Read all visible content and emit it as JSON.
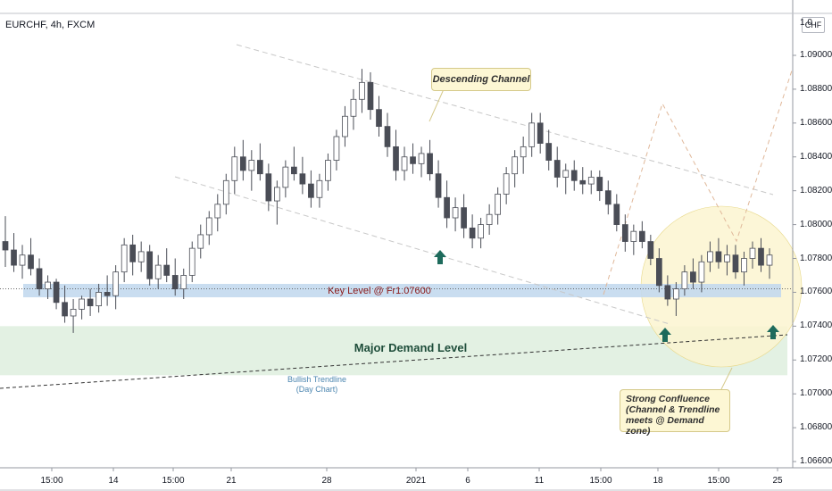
{
  "header": {
    "symbol": "EURCHF, 4h, FXCM",
    "currency": "CHF"
  },
  "annotations": {
    "descending_channel": "Descending Channel",
    "key_level": "Key Level @ Fr1.07600",
    "demand_level": "Major Demand Level",
    "trendline": "Bullish Trendline\n(Day Chart)",
    "confluence": "Strong Confluence\n(Channel & Trendline\nmeets @ Demand zone)"
  },
  "colors": {
    "bull": "#ffffff",
    "bear": "#4a4d56",
    "key_zone": "#c3d9ee",
    "demand_zone": "#e3f1e3",
    "confluence_circle": "#fbf4d0",
    "arrow": "#1e6b5c",
    "channel": "#c8c8c8",
    "projection": "#e0b89a"
  },
  "chart_data": {
    "type": "candlestick",
    "title": "EURCHF, 4h, FXCM",
    "y_axis": {
      "ticks": [
        "1.09000",
        "1.08800",
        "1.08600",
        "1.08400",
        "1.08200",
        "1.08000",
        "1.07800",
        "1.07600",
        "1.07400",
        "1.07200",
        "1.07000",
        "1.06800",
        "1.06600"
      ],
      "range": [
        1.065,
        1.092
      ]
    },
    "x_axis": {
      "ticks": [
        "15:00",
        "14",
        "15:00",
        "21",
        "28",
        "2021",
        "6",
        "11",
        "15:00",
        "18",
        "15:00",
        "25"
      ]
    },
    "key_level": 1.076,
    "demand_zone": [
      1.0711,
      1.074
    ],
    "bars": [
      [
        1.079,
        1.0805,
        1.0775,
        1.0785
      ],
      [
        1.0785,
        1.0795,
        1.0772,
        1.0776
      ],
      [
        1.0776,
        1.0788,
        1.0768,
        1.0782
      ],
      [
        1.0782,
        1.0792,
        1.077,
        1.0774
      ],
      [
        1.0774,
        1.078,
        1.0758,
        1.0762
      ],
      [
        1.0762,
        1.077,
        1.0756,
        1.0766
      ],
      [
        1.0766,
        1.0768,
        1.075,
        1.0754
      ],
      [
        1.0754,
        1.0764,
        1.0742,
        1.0746
      ],
      [
        1.0746,
        1.0756,
        1.0736,
        1.075
      ],
      [
        1.075,
        1.0758,
        1.0744,
        1.0756
      ],
      [
        1.0756,
        1.0762,
        1.0746,
        1.0752
      ],
      [
        1.0752,
        1.0765,
        1.0748,
        1.076
      ],
      [
        1.076,
        1.077,
        1.0752,
        1.0758
      ],
      [
        1.0758,
        1.0776,
        1.075,
        1.0772
      ],
      [
        1.0772,
        1.0792,
        1.0766,
        1.0788
      ],
      [
        1.0788,
        1.0794,
        1.077,
        1.0778
      ],
      [
        1.0778,
        1.079,
        1.0772,
        1.0784
      ],
      [
        1.0784,
        1.0788,
        1.0764,
        1.0768
      ],
      [
        1.0768,
        1.0782,
        1.0762,
        1.0776
      ],
      [
        1.0776,
        1.0786,
        1.0766,
        1.077
      ],
      [
        1.077,
        1.078,
        1.0758,
        1.0762
      ],
      [
        1.0762,
        1.0774,
        1.0756,
        1.077
      ],
      [
        1.077,
        1.079,
        1.0766,
        1.0786
      ],
      [
        1.0786,
        1.08,
        1.078,
        1.0794
      ],
      [
        1.0794,
        1.0808,
        1.0788,
        1.0804
      ],
      [
        1.0804,
        1.0818,
        1.0796,
        1.0812
      ],
      [
        1.0812,
        1.083,
        1.0806,
        1.0826
      ],
      [
        1.0826,
        1.0846,
        1.0818,
        1.084
      ],
      [
        1.084,
        1.085,
        1.0826,
        1.0832
      ],
      [
        1.0832,
        1.0844,
        1.082,
        1.0838
      ],
      [
        1.0838,
        1.0848,
        1.0826,
        1.083
      ],
      [
        1.083,
        1.0836,
        1.0808,
        1.0814
      ],
      [
        1.0814,
        1.0826,
        1.08,
        1.0822
      ],
      [
        1.0822,
        1.0838,
        1.0816,
        1.0834
      ],
      [
        1.0834,
        1.0846,
        1.0826,
        1.083
      ],
      [
        1.083,
        1.084,
        1.0818,
        1.0824
      ],
      [
        1.0824,
        1.0832,
        1.081,
        1.0816
      ],
      [
        1.0816,
        1.083,
        1.081,
        1.0826
      ],
      [
        1.0826,
        1.0842,
        1.082,
        1.0838
      ],
      [
        1.0838,
        1.0856,
        1.0832,
        1.0852
      ],
      [
        1.0852,
        1.087,
        1.0846,
        1.0864
      ],
      [
        1.0864,
        1.088,
        1.0856,
        1.0874
      ],
      [
        1.0874,
        1.0892,
        1.0866,
        1.0884
      ],
      [
        1.0884,
        1.089,
        1.0862,
        1.0868
      ],
      [
        1.0868,
        1.0876,
        1.0852,
        1.0858
      ],
      [
        1.0858,
        1.0866,
        1.084,
        1.0846
      ],
      [
        1.0846,
        1.0856,
        1.0826,
        1.0832
      ],
      [
        1.0832,
        1.0846,
        1.0826,
        1.084
      ],
      [
        1.084,
        1.0848,
        1.083,
        1.0836
      ],
      [
        1.0836,
        1.0846,
        1.0828,
        1.0842
      ],
      [
        1.0842,
        1.085,
        1.0826,
        1.083
      ],
      [
        1.083,
        1.0838,
        1.081,
        1.0816
      ],
      [
        1.0816,
        1.0826,
        1.0798,
        1.0804
      ],
      [
        1.0804,
        1.0816,
        1.0796,
        1.081
      ],
      [
        1.081,
        1.0818,
        1.0792,
        1.0798
      ],
      [
        1.0798,
        1.0806,
        1.0786,
        1.0792
      ],
      [
        1.0792,
        1.0804,
        1.0786,
        1.08
      ],
      [
        1.08,
        1.0812,
        1.0794,
        1.0806
      ],
      [
        1.0806,
        1.0822,
        1.08,
        1.0818
      ],
      [
        1.0818,
        1.0834,
        1.0812,
        1.083
      ],
      [
        1.083,
        1.0844,
        1.0822,
        1.084
      ],
      [
        1.084,
        1.0852,
        1.083,
        1.0846
      ],
      [
        1.0846,
        1.0866,
        1.084,
        1.086
      ],
      [
        1.086,
        1.0866,
        1.0842,
        1.0848
      ],
      [
        1.0848,
        1.0856,
        1.0832,
        1.0838
      ],
      [
        1.0838,
        1.0846,
        1.0822,
        1.0828
      ],
      [
        1.0828,
        1.0836,
        1.0818,
        1.0832
      ],
      [
        1.0832,
        1.0838,
        1.082,
        1.0826
      ],
      [
        1.0826,
        1.0834,
        1.0818,
        1.0824
      ],
      [
        1.0824,
        1.0832,
        1.0818,
        1.0828
      ],
      [
        1.0828,
        1.0832,
        1.0814,
        1.082
      ],
      [
        1.082,
        1.0826,
        1.0806,
        1.0812
      ],
      [
        1.0812,
        1.0818,
        1.0796,
        1.08
      ],
      [
        1.08,
        1.0806,
        1.0784,
        1.079
      ],
      [
        1.079,
        1.08,
        1.0782,
        1.0796
      ],
      [
        1.0796,
        1.0802,
        1.0786,
        1.079
      ],
      [
        1.079,
        1.0794,
        1.0776,
        1.078
      ],
      [
        1.078,
        1.0786,
        1.076,
        1.0764
      ],
      [
        1.0764,
        1.077,
        1.0752,
        1.0756
      ],
      [
        1.0756,
        1.0766,
        1.0746,
        1.0762
      ],
      [
        1.0762,
        1.0776,
        1.0758,
        1.0772
      ],
      [
        1.0772,
        1.078,
        1.0762,
        1.0766
      ],
      [
        1.0766,
        1.0782,
        1.076,
        1.0778
      ],
      [
        1.0778,
        1.079,
        1.0772,
        1.0784
      ],
      [
        1.0784,
        1.0792,
        1.0774,
        1.0778
      ],
      [
        1.0778,
        1.0788,
        1.077,
        1.0782
      ],
      [
        1.0782,
        1.0788,
        1.0768,
        1.0772
      ],
      [
        1.0772,
        1.0784,
        1.0764,
        1.078
      ],
      [
        1.078,
        1.079,
        1.0774,
        1.0786
      ],
      [
        1.0786,
        1.0792,
        1.0772,
        1.0776
      ],
      [
        1.0776,
        1.0786,
        1.0768,
        1.0782
      ]
    ]
  }
}
